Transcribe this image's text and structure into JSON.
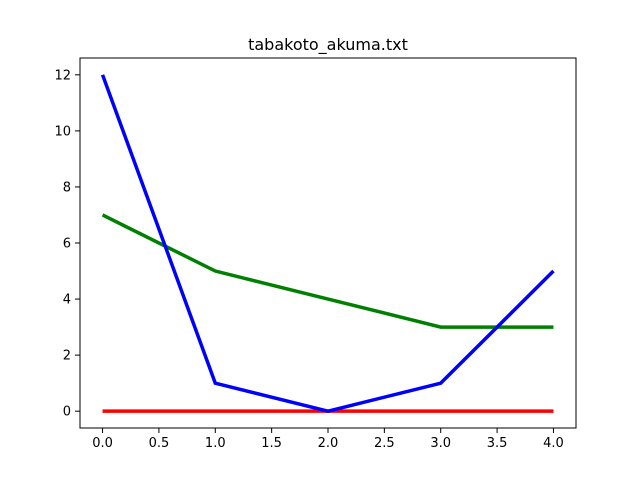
{
  "chart_data": {
    "type": "line",
    "title": "tabakoto_akuma.txt",
    "xlabel": "",
    "ylabel": "",
    "x": [
      0,
      1,
      2,
      3,
      4
    ],
    "xlim": [
      -0.2,
      4.2
    ],
    "ylim": [
      -0.6,
      12.6
    ],
    "xticks": [
      0.0,
      0.5,
      1.0,
      1.5,
      2.0,
      2.5,
      3.0,
      3.5,
      4.0
    ],
    "xtick_labels": [
      "0.0",
      "0.5",
      "1.0",
      "1.5",
      "2.0",
      "2.5",
      "3.0",
      "3.5",
      "4.0"
    ],
    "yticks": [
      0,
      2,
      4,
      6,
      8,
      10,
      12
    ],
    "ytick_labels": [
      "0",
      "2",
      "4",
      "6",
      "8",
      "10",
      "12"
    ],
    "grid": false,
    "series": [
      {
        "color": "#ff0000",
        "values": [
          0,
          0,
          0,
          0,
          0
        ]
      },
      {
        "color": "#008000",
        "values": [
          7,
          5,
          4,
          3,
          3
        ]
      },
      {
        "color": "#0000ff",
        "values": [
          12,
          1,
          0,
          1,
          5
        ]
      }
    ]
  }
}
